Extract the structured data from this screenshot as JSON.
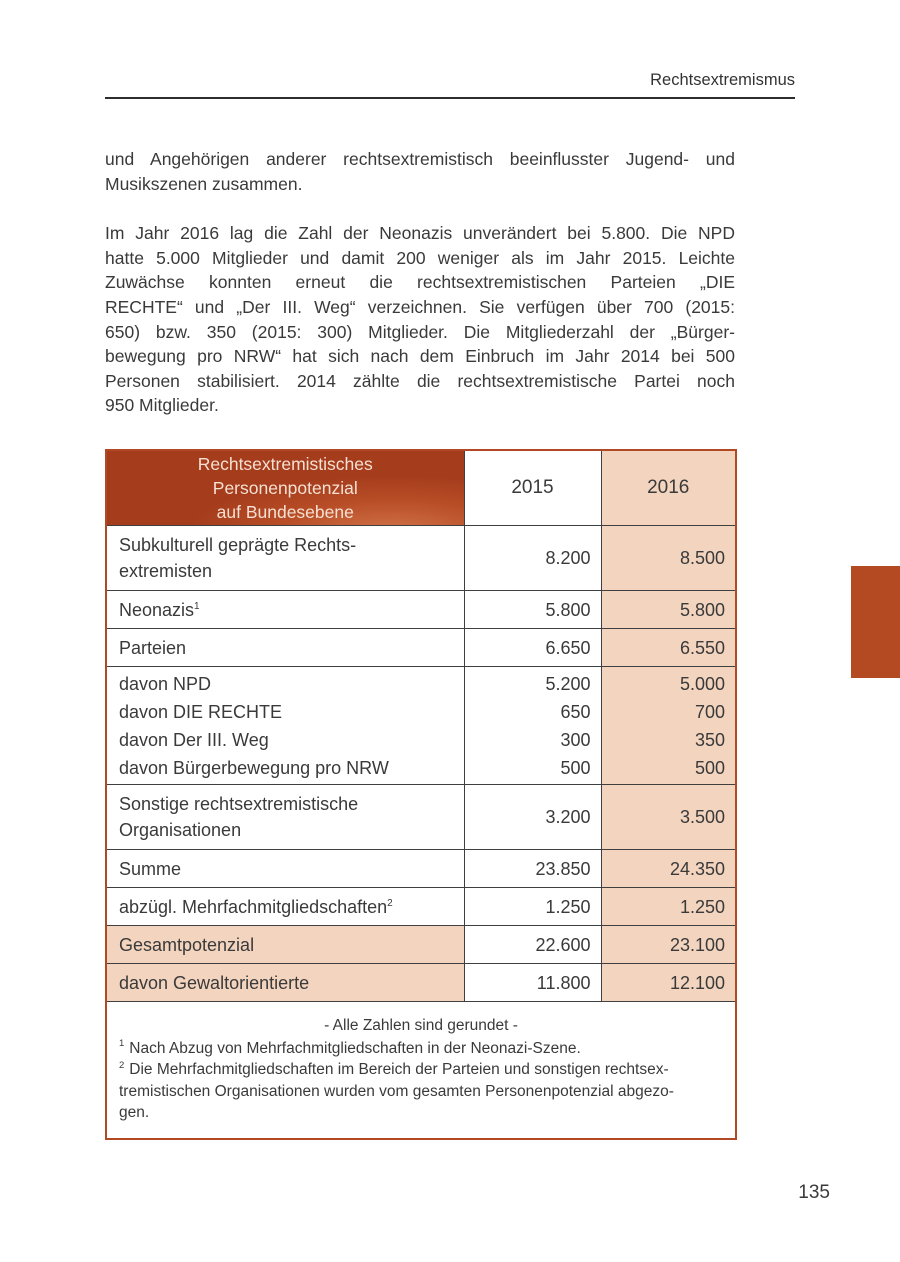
{
  "page": {
    "running_head": "Rechtsextremismus",
    "page_number": "135"
  },
  "paragraphs": {
    "p1": "und Angehörigen anderer rechtsextremistisch beeinflusster Jugend- und\nMusikszenen zusammen.",
    "p2": "Im Jahr 2016 lag die Zahl der Neonazis unverändert bei 5.800. Die NPD\nhatte 5.000 Mitglieder und damit 200 weniger als im Jahr 2015. Leichte\nZuwächse konnten erneut die rechtsextremistischen Parteien „DIE\nRECHTE“ und „Der III. Weg“ verzeichnen. Sie verfügen über 700 (2015:\n650) bzw. 350 (2015: 300) Mitglieder. Die Mitgliederzahl der „Bürger-\nbewegung pro NRW“ hat sich nach dem Einbruch im Jahr 2014 bei 500\nPersonen stabilisiert. 2014 zählte die rechtsextremistische Partei noch\n950 Mitglieder."
  },
  "table": {
    "header": {
      "title": "Rechtsextremistisches\nPersonenpotenzial\nauf Bundesebene",
      "col_2015": "2015",
      "col_2016": "2016"
    },
    "rows": [
      {
        "label": "Subkulturell geprägte Rechts-\nextremisten",
        "sup": "",
        "v2015": "8.200",
        "v2016": "8.500"
      },
      {
        "label": "Neonazis",
        "sup": "1",
        "v2015": "5.800",
        "v2016": "5.800"
      },
      {
        "label": "Parteien",
        "sup": "",
        "v2015": "6.650",
        "v2016": "6.550"
      },
      {
        "label": "davon NPD\ndavon DIE RECHTE\ndavon Der III. Weg\ndavon Bürgerbewegung pro NRW",
        "sup": "",
        "v2015": "5.200\n650\n300\n500",
        "v2016": "5.000\n700\n350\n500"
      },
      {
        "label": "Sonstige rechtsextremistische\nOrganisationen",
        "sup": "",
        "v2015": "3.200",
        "v2016": "3.500"
      },
      {
        "label": "Summe",
        "sup": "",
        "v2015": "23.850",
        "v2016": "24.350"
      },
      {
        "label": "abzügl. Mehrfachmitgliedschaften",
        "sup": "2",
        "v2015": "1.250",
        "v2016": "1.250"
      },
      {
        "label": "Gesamtpotenzial",
        "sup": "",
        "v2015": "22.600",
        "v2016": "23.100"
      },
      {
        "label": "davon Gewaltorientierte",
        "sup": "",
        "v2015": "11.800",
        "v2016": "12.100"
      }
    ],
    "footnote_center": "- Alle Zahlen sind gerundet -",
    "footnotes": [
      {
        "sup": "1",
        "text": "Nach Abzug von Mehrfachmitgliedschaften in der Neonazi-Szene."
      },
      {
        "sup": "2",
        "text": "Die Mehrfachmitgliedschaften im Bereich der Parteien und sonstigen rechtsex-\ntremistischen Organisationen wurden vom gesamten Personenpotenzial abgezo-\ngen."
      }
    ]
  },
  "colors": {
    "header_red": "#a53c1c",
    "header_red_light": "#d07147",
    "peach": "#f3d4bf",
    "rust_border": "#b14a24",
    "side_tab": "#b44a22",
    "text": "#3a3a3a"
  }
}
